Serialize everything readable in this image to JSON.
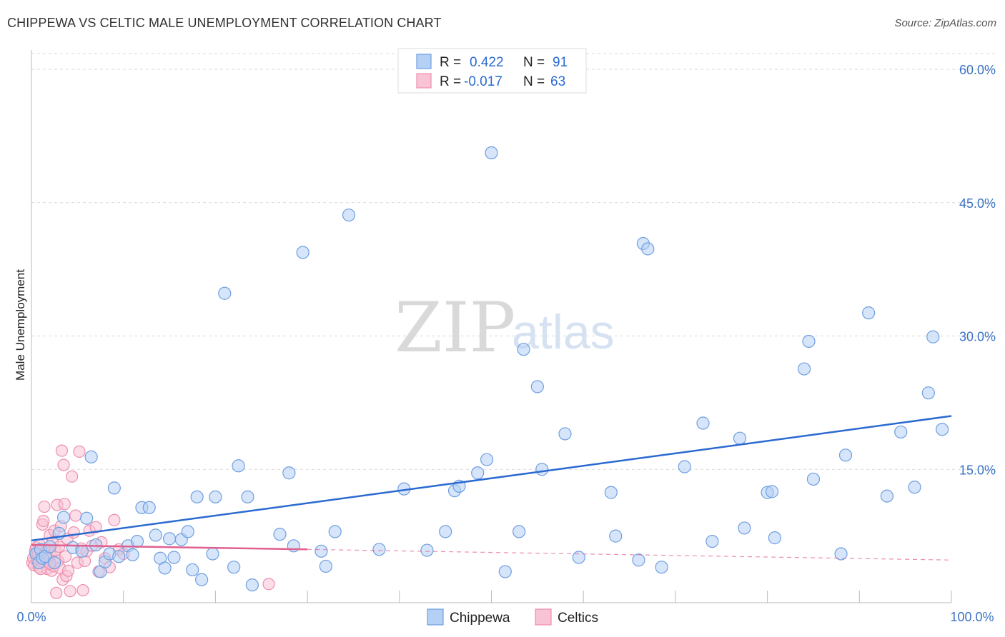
{
  "title": "CHIPPEWA VS CELTIC MALE UNEMPLOYMENT CORRELATION CHART",
  "source": "Source: ZipAtlas.com",
  "watermark": {
    "part1": "ZIP",
    "part2": "atlas"
  },
  "colors": {
    "chippewa_fill": "#b5d0f5",
    "chippewa_stroke": "#6f9fe0",
    "chippewa_line": "#2a6ad0",
    "celtics_fill": "#f8c3d4",
    "celtics_stroke": "#ee8eae",
    "celtics_line": "#e06090",
    "grid": "#d9d9d9",
    "tick_text": "#3a72c4"
  },
  "legend": {
    "rows": [
      {
        "r_label": "R =",
        "r_value": "0.422",
        "n_label": "N =",
        "n_value": "91"
      },
      {
        "r_label": "R =",
        "r_value": "-0.017",
        "n_label": "N =",
        "n_value": "63"
      }
    ]
  },
  "chart_data": {
    "type": "scatter",
    "title": "CHIPPEWA VS CELTIC MALE UNEMPLOYMENT CORRELATION CHART",
    "xlabel": "",
    "ylabel": "Male Unemployment",
    "xlim": [
      0,
      100
    ],
    "ylim": [
      0,
      60
    ],
    "x_tick_labels": [
      "0.0%",
      "100.0%"
    ],
    "y_ticks": [
      15,
      30,
      45,
      60
    ],
    "y_tick_labels": [
      "15.0%",
      "30.0%",
      "45.0%",
      "60.0%"
    ],
    "grid": true,
    "legend_position": "bottom-center",
    "series": [
      {
        "name": "Chippewa",
        "R": 0.422,
        "N": 91,
        "trend": {
          "x0": 0,
          "y0": 7.0,
          "x1": 100,
          "y1": 21.0
        },
        "points": [
          [
            0.5,
            5.5
          ],
          [
            0.8,
            4.5
          ],
          [
            1.0,
            6.0
          ],
          [
            1.2,
            5.0
          ],
          [
            1.5,
            5.2
          ],
          [
            2.0,
            6.3
          ],
          [
            2.5,
            4.5
          ],
          [
            3.0,
            7.8
          ],
          [
            3.5,
            9.6
          ],
          [
            4.5,
            6.2
          ],
          [
            5.5,
            5.8
          ],
          [
            6.0,
            9.5
          ],
          [
            6.5,
            16.4
          ],
          [
            7.0,
            6.5
          ],
          [
            7.5,
            3.5
          ],
          [
            8.0,
            4.6
          ],
          [
            8.5,
            5.5
          ],
          [
            9.0,
            12.9
          ],
          [
            9.5,
            5.2
          ],
          [
            10.5,
            6.4
          ],
          [
            11.0,
            5.4
          ],
          [
            11.5,
            6.9
          ],
          [
            12.0,
            10.7
          ],
          [
            12.8,
            10.7
          ],
          [
            13.5,
            7.6
          ],
          [
            14.0,
            5.0
          ],
          [
            14.5,
            3.9
          ],
          [
            15.0,
            7.2
          ],
          [
            15.5,
            5.1
          ],
          [
            16.3,
            7.1
          ],
          [
            17.0,
            8.0
          ],
          [
            17.5,
            3.7
          ],
          [
            18.0,
            11.9
          ],
          [
            18.5,
            2.6
          ],
          [
            19.7,
            5.5
          ],
          [
            20.0,
            11.9
          ],
          [
            21.0,
            34.8
          ],
          [
            22.0,
            4.0
          ],
          [
            22.5,
            15.4
          ],
          [
            23.5,
            11.9
          ],
          [
            24.0,
            2.0
          ],
          [
            27.0,
            7.7
          ],
          [
            28.0,
            14.6
          ],
          [
            28.5,
            6.4
          ],
          [
            29.5,
            39.4
          ],
          [
            31.5,
            5.8
          ],
          [
            32.0,
            4.1
          ],
          [
            33.0,
            8.0
          ],
          [
            34.5,
            43.6
          ],
          [
            37.8,
            6.0
          ],
          [
            40.5,
            12.8
          ],
          [
            43.0,
            5.9
          ],
          [
            45.0,
            8.0
          ],
          [
            46.0,
            12.6
          ],
          [
            46.5,
            13.1
          ],
          [
            48.5,
            14.6
          ],
          [
            49.5,
            16.1
          ],
          [
            50.0,
            50.6
          ],
          [
            51.5,
            3.5
          ],
          [
            53.0,
            8.0
          ],
          [
            53.5,
            28.5
          ],
          [
            55.0,
            24.3
          ],
          [
            55.5,
            15.0
          ],
          [
            58.0,
            19.0
          ],
          [
            59.5,
            5.1
          ],
          [
            63.0,
            12.4
          ],
          [
            63.5,
            7.5
          ],
          [
            66.0,
            4.8
          ],
          [
            66.5,
            40.4
          ],
          [
            67.0,
            39.8
          ],
          [
            68.5,
            4.0
          ],
          [
            71.0,
            15.3
          ],
          [
            73.0,
            20.2
          ],
          [
            74.0,
            6.9
          ],
          [
            77.0,
            18.5
          ],
          [
            77.5,
            8.4
          ],
          [
            80.0,
            12.4
          ],
          [
            80.5,
            12.5
          ],
          [
            80.8,
            7.3
          ],
          [
            84.0,
            26.3
          ],
          [
            84.5,
            29.4
          ],
          [
            85.0,
            13.9
          ],
          [
            88.5,
            16.6
          ],
          [
            88.0,
            5.5
          ],
          [
            91.0,
            32.6
          ],
          [
            93.0,
            12.0
          ],
          [
            94.5,
            19.2
          ],
          [
            96.0,
            13.0
          ],
          [
            97.5,
            23.6
          ],
          [
            98.0,
            29.9
          ],
          [
            99.0,
            19.5
          ]
        ]
      },
      {
        "name": "Celtics",
        "R": -0.017,
        "N": 63,
        "trend": {
          "x0": 0,
          "y0": 6.5,
          "x1": 30,
          "y1": 6.0
        },
        "trend_dashed": {
          "x0": 30,
          "y0": 6.0,
          "x1": 100,
          "y1": 4.8
        },
        "points": [
          [
            0.1,
            4.5
          ],
          [
            0.2,
            5.0
          ],
          [
            0.3,
            4.2
          ],
          [
            0.4,
            5.8
          ],
          [
            0.5,
            6.2
          ],
          [
            0.6,
            4.8
          ],
          [
            0.7,
            5.5
          ],
          [
            0.8,
            4.0
          ],
          [
            0.9,
            6.5
          ],
          [
            1.0,
            5.1
          ],
          [
            1.1,
            4.6
          ],
          [
            1.2,
            8.8
          ],
          [
            1.3,
            9.2
          ],
          [
            1.4,
            10.8
          ],
          [
            1.5,
            4.3
          ],
          [
            1.6,
            5.6
          ],
          [
            1.7,
            3.8
          ],
          [
            1.8,
            6.0
          ],
          [
            1.9,
            4.9
          ],
          [
            2.0,
            7.6
          ],
          [
            2.1,
            5.3
          ],
          [
            2.2,
            3.6
          ],
          [
            2.3,
            6.8
          ],
          [
            2.4,
            4.1
          ],
          [
            2.5,
            8.1
          ],
          [
            2.6,
            5.9
          ],
          [
            2.7,
            1.1
          ],
          [
            2.8,
            11.0
          ],
          [
            2.9,
            4.7
          ],
          [
            3.0,
            6.3
          ],
          [
            3.1,
            3.9
          ],
          [
            3.2,
            8.6
          ],
          [
            3.3,
            17.1
          ],
          [
            3.4,
            2.6
          ],
          [
            3.5,
            15.5
          ],
          [
            3.6,
            11.1
          ],
          [
            3.7,
            5.2
          ],
          [
            3.8,
            3.0
          ],
          [
            3.9,
            7.2
          ],
          [
            4.0,
            3.6
          ],
          [
            4.2,
            1.3
          ],
          [
            4.4,
            14.2
          ],
          [
            4.6,
            7.9
          ],
          [
            4.8,
            9.8
          ],
          [
            5.0,
            4.5
          ],
          [
            5.2,
            17.0
          ],
          [
            5.4,
            6.1
          ],
          [
            5.6,
            1.4
          ],
          [
            5.8,
            4.7
          ],
          [
            6.0,
            5.8
          ],
          [
            6.3,
            8.1
          ],
          [
            6.6,
            6.4
          ],
          [
            7.0,
            8.5
          ],
          [
            7.3,
            3.5
          ],
          [
            7.6,
            6.8
          ],
          [
            8.0,
            5.0
          ],
          [
            8.5,
            4.0
          ],
          [
            9.0,
            9.3
          ],
          [
            9.5,
            6.0
          ],
          [
            10.0,
            5.5
          ],
          [
            1.0,
            3.8
          ],
          [
            2.0,
            4.4
          ],
          [
            25.8,
            2.1
          ]
        ]
      }
    ]
  },
  "bottom_legend": {
    "items": [
      "Chippewa",
      "Celtics"
    ]
  }
}
